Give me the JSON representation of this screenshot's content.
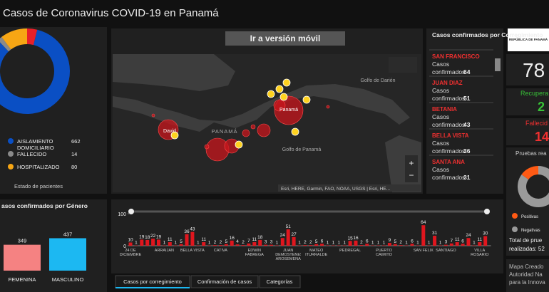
{
  "title": "Casos de Coronavirus COVID-19 en Panamá",
  "map": {
    "button": "Ir a versión móvil",
    "labels": [
      "Golfo de Darién",
      "PANAMÁ",
      "Panamá",
      "David",
      "Golfo de Panamá"
    ],
    "attribution": "Esri, HERE, Garmin, FAO, NOAA, USGS | Esri, HE..."
  },
  "list": {
    "title": "Casos confirmados por Corregimiento",
    "item_label": [
      "Casos",
      "confirmados:"
    ],
    "items": [
      {
        "name": "SAN FRANCISCO",
        "value": 64
      },
      {
        "name": "JUAN DIAZ",
        "value": 51
      },
      {
        "name": "BETANIA",
        "value": 43
      },
      {
        "name": "BELLA VISTA",
        "value": 36
      },
      {
        "name": "SANTA ANA",
        "value": 31
      }
    ]
  },
  "stats": {
    "logo": "REPÚBLICA DE PANAMÁ",
    "confirmed": "78",
    "recovered_label": "Recupera",
    "recovered": "2",
    "deaths_label": "Fallecid",
    "deaths": "14",
    "tests_title": "Pruebas rea",
    "tests_total": [
      "Total de prue",
      "realizadas: 52"
    ],
    "credits": [
      "Mapa Creado",
      "Autoridad Na",
      "para la Innova"
    ]
  },
  "tabs": [
    "Casos por corregimiento",
    "Confirmación de casos",
    "Categorías"
  ],
  "chart_data": [
    {
      "type": "pie",
      "title": "Estado de pacientes",
      "categories": [
        null,
        "AISLAMIENTO DOMICILIARIO",
        "FALLECIDO",
        "HOSPITALIZADO"
      ],
      "values": [
        30,
        662,
        14,
        80
      ],
      "colors": [
        "#e8202a",
        "#0a4fc4",
        "#8a8a8a",
        "#f7a614"
      ]
    },
    {
      "type": "pie",
      "categories": [
        "Negativas",
        "Positivas"
      ],
      "values": [
        85,
        15
      ],
      "colors": [
        "#9a9a9a",
        "#ff5a14"
      ]
    },
    {
      "type": "bar",
      "title": "asos confirmados por Género",
      "categories": [
        "FEMENINA",
        "MASCULINO"
      ],
      "values": [
        349,
        437
      ],
      "colors": [
        "#f58282",
        "#1cb8f2"
      ],
      "ylim": [
        0,
        480
      ]
    },
    {
      "type": "bar",
      "color": "#e0161e",
      "ylim": [
        0,
        100
      ],
      "yticks": [
        0,
        100
      ],
      "categories": [
        "24 DE DICIEMBRE",
        null,
        null,
        null,
        null,
        null,
        "ARRAIJAN",
        null,
        null,
        null,
        null,
        "BELLA VISTA",
        null,
        null,
        null,
        null,
        "CATIVA",
        null,
        null,
        null,
        null,
        null,
        "EDWIN FABREGA",
        null,
        null,
        null,
        null,
        null,
        "JUAN DEMOSTENES AROSEMENA",
        null,
        null,
        null,
        null,
        "MATEO ITURRALDE",
        null,
        null,
        null,
        null,
        null,
        "PEDREGAL",
        null,
        null,
        null,
        null,
        null,
        "PUERTO CAIMITO",
        null,
        null,
        null,
        null,
        null,
        null,
        "SAN FELIX",
        null,
        null,
        null,
        "SANTIAGO",
        null,
        null,
        null,
        null,
        null,
        "VILLA ROSARIO",
        null
      ],
      "values": [
        10,
        1,
        19,
        18,
        22,
        19,
        1,
        11,
        1,
        5,
        36,
        43,
        1,
        11,
        1,
        2,
        2,
        5,
        16,
        4,
        2,
        7,
        11,
        18,
        3,
        3,
        1,
        24,
        51,
        27,
        1,
        2,
        2,
        5,
        6,
        1,
        1,
        1,
        1,
        15,
        16,
        2,
        6,
        1,
        1,
        1,
        9,
        5,
        2,
        1,
        6,
        1,
        64,
        1,
        31,
        1,
        3,
        7,
        11,
        6,
        24,
        1,
        11,
        30
      ]
    }
  ]
}
